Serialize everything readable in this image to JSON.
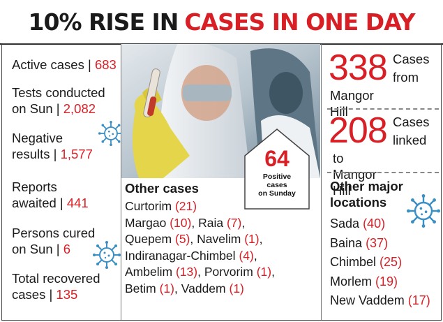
{
  "headline": {
    "part1": "10% RISE IN",
    "part2": "CASES IN ONE DAY"
  },
  "stats": [
    {
      "label": "Active cases |",
      "value": "683"
    },
    {
      "label_l1": "Tests conducted",
      "label_l2": "on Sun |",
      "value": "2,082"
    },
    {
      "label_l1": "Negative",
      "label_l2": "results |",
      "value": "1,577"
    },
    {
      "label_l1": "Reports",
      "label_l2": "awaited |",
      "value": "441"
    },
    {
      "label_l1": "Persons cured",
      "label_l2": "on Sun |",
      "value": "6"
    },
    {
      "label_l1": "Total recovered",
      "label_l2": "cases |",
      "value": "135"
    }
  ],
  "positive": {
    "number": "64",
    "line1": "Positive",
    "line2": "cases",
    "line3": "on Sunday"
  },
  "other_cases": {
    "heading": "Other cases",
    "items": [
      {
        "name": "Curtorim",
        "count": "(21)"
      },
      {
        "name": "Margao",
        "count": "(10)"
      },
      {
        "name": "Raia",
        "count": "(7)"
      },
      {
        "name": "Quepem",
        "count": "(5)"
      },
      {
        "name": "Navelim",
        "count": "(1)"
      },
      {
        "name": "Indiranagar-Chimbel",
        "count": "(4)"
      },
      {
        "name": "Ambelim",
        "count": "(13)"
      },
      {
        "name": "Porvorim",
        "count": "(1)"
      },
      {
        "name": "Betim",
        "count": "(1)"
      },
      {
        "name": "Vaddem",
        "count": "(1)"
      }
    ]
  },
  "mangor": [
    {
      "number": "338",
      "l1": "Cases",
      "l2": "from",
      "l3": "Mangor Hill"
    },
    {
      "number": "208",
      "l1": "Cases",
      "l2": "linked",
      "l3": "to Mangor Hill"
    }
  ],
  "major_locations": {
    "heading_l1": "Other major",
    "heading_l2": "locations",
    "items": [
      {
        "name": "Sada",
        "count": "(40)"
      },
      {
        "name": "Baina",
        "count": "(37)"
      },
      {
        "name": "Chimbel",
        "count": "(25)"
      },
      {
        "name": "Morlem",
        "count": "(19)"
      },
      {
        "name": "New Vaddem",
        "count": "(17)"
      }
    ]
  },
  "colors": {
    "accent": "#d81f26",
    "text": "#1a1a1a",
    "virus": "#3a8fc4"
  },
  "icons": [
    "coronavirus-icon"
  ]
}
